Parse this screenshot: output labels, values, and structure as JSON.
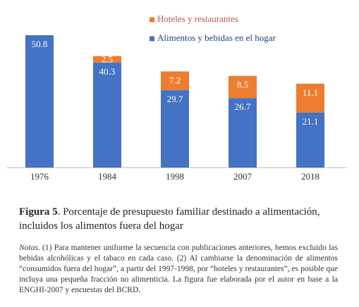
{
  "chart_data": {
    "type": "stacked-bar",
    "categories": [
      "1976",
      "1984",
      "1998",
      "2007",
      "2018"
    ],
    "series": [
      {
        "name": "Hoteles y restaurantes",
        "color": "#ed7d31",
        "values": [
          null,
          2.5,
          7.2,
          8.5,
          11.1
        ]
      },
      {
        "name": "Alimentos y bebidas en el hogar",
        "color": "#4472c4",
        "values": [
          50.8,
          40.3,
          29.7,
          26.7,
          21.1
        ]
      }
    ]
  },
  "caption": {
    "label": "Figura 5",
    "text": ". Porcentaje de presupuesto familiar destinado a alimentación, incluidos los alimentos fuera del hogar"
  },
  "notes": {
    "label": "Notas",
    "text": ". (1) Para mantener uniforme la secuencia con publicaciones anteriores, hemos excluido las bebidas alcohólicas y el tabaco en cada caso. (2) Al cambiarse la denominación de alimentos “consumidos fuera del hogar”, a partir del 1997-1998, por “hoteles y restaurantes”, es posible que incluya una pequeña fracción no alimenticia. La figura fue elaborada por el autor en base a la ENGHI-2007 y encuestas del BCRD."
  }
}
